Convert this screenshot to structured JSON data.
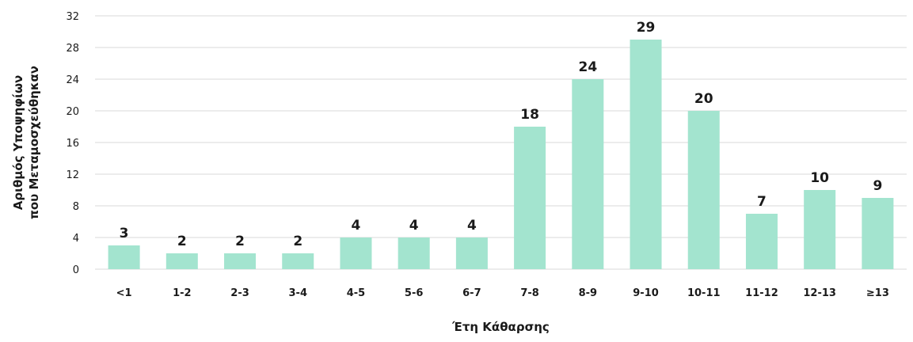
{
  "chart_data": {
    "type": "bar",
    "categories": [
      "<1",
      "1-2",
      "2-3",
      "3-4",
      "4-5",
      "5-6",
      "6-7",
      "7-8",
      "8-9",
      "9-10",
      "10-11",
      "11-12",
      "12-13",
      "≥13"
    ],
    "values": [
      3,
      2,
      2,
      2,
      4,
      4,
      4,
      18,
      24,
      29,
      20,
      7,
      10,
      9
    ],
    "title": "",
    "xlabel": "Έτη Κάθαρσης",
    "ylabel_lines": [
      "Αριθμός Υποψηφίων",
      "που Μεταμοσχεύθηκαν"
    ],
    "ylim": [
      0,
      32
    ],
    "yticks": [
      0,
      4,
      8,
      12,
      16,
      20,
      24,
      28,
      32
    ],
    "grid": true,
    "legend": "none",
    "bar_color": "#a3e4cf"
  }
}
